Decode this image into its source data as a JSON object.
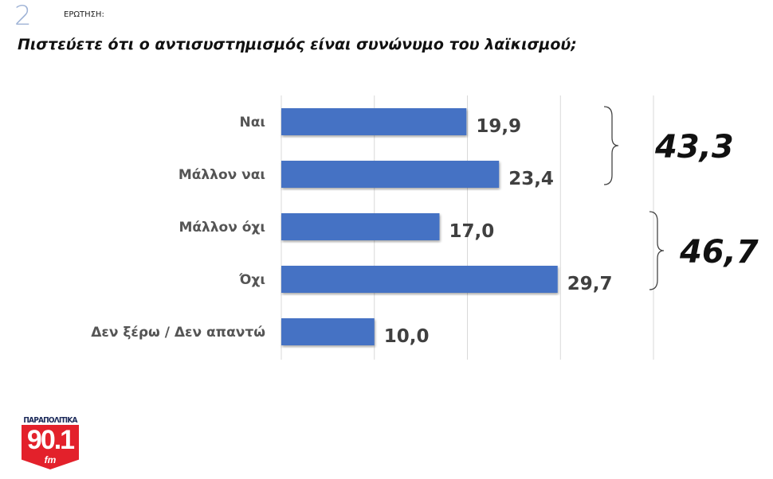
{
  "header": {
    "number": "2",
    "question_label": "ΕΡΩΤΗΣΗ:",
    "title": "Πιστεύετε ότι ο αντισυστημισμός είναι συνώνυμο του λαϊκισμού;"
  },
  "logo": {
    "brand": "ΠΑΡΑΠΟΛΙΤΙΚΑ",
    "frequency": "90.1",
    "band": "fm",
    "colors": {
      "red": "#e3212b",
      "navy": "#1c2a5a"
    }
  },
  "chart_data": {
    "type": "bar",
    "orientation": "horizontal",
    "categories": [
      "Ναι",
      "Μάλλον ναι",
      "Μάλλον όχι",
      "Όχι",
      "Δεν ξέρω / Δεν απαντώ"
    ],
    "values": [
      19.9,
      23.4,
      17.0,
      29.7,
      10.0
    ],
    "data_labels": [
      "19,9",
      "23,4",
      "17,0",
      "29,7",
      "10,0"
    ],
    "xlim": [
      0,
      40
    ],
    "grid": true,
    "bar_color": "#4472c4",
    "groups": [
      {
        "categories": [
          "Ναι",
          "Μάλλον ναι"
        ],
        "total": "43,3"
      },
      {
        "categories": [
          "Μάλλον όχι",
          "Όχι"
        ],
        "total": "46,7"
      }
    ]
  }
}
